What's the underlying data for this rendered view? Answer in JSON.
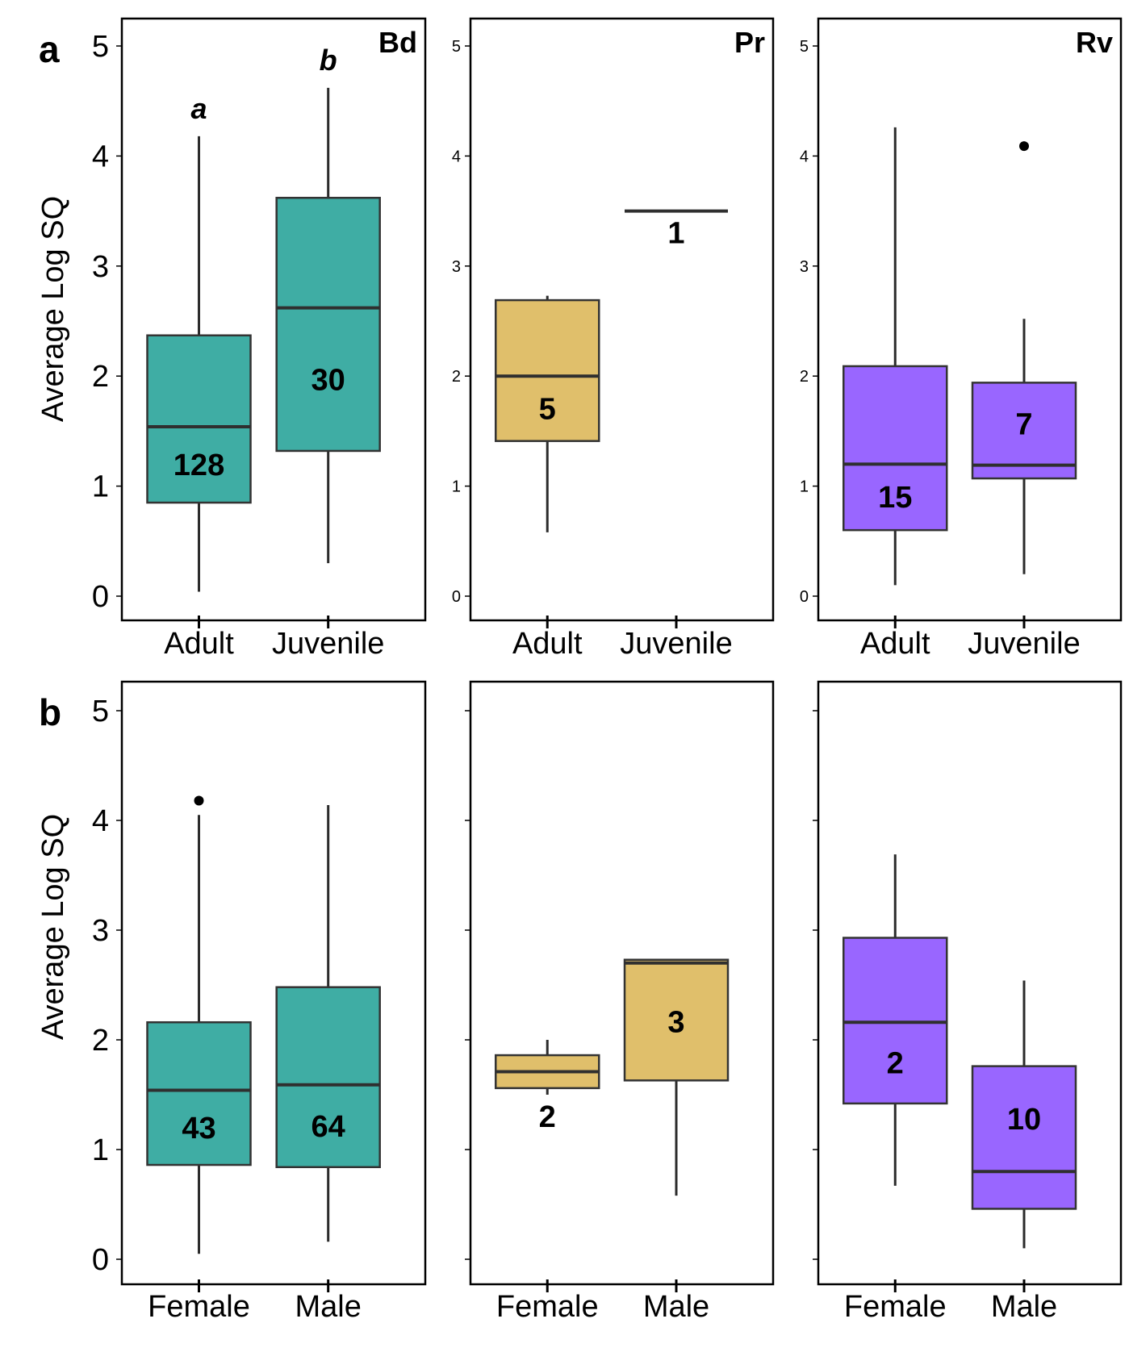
{
  "panel_letters": [
    "a",
    "b"
  ],
  "y_axis_title": "Average Log SQ",
  "colors": {
    "Bd": "#3fada4",
    "Pr": "#e0bf6b",
    "Rv": "#9966ff",
    "outline": "#333333"
  },
  "chart_data": [
    {
      "type": "box",
      "row": "a",
      "pathogen": "Bd",
      "ylim": [
        0,
        5
      ],
      "y_ticks": [
        0,
        1,
        2,
        3,
        4,
        5
      ],
      "show_y_labels": "large",
      "categories": [
        "Adult",
        "Juvenile"
      ],
      "boxes": [
        {
          "category": "Adult",
          "min": 0.04,
          "q1": 0.85,
          "median": 1.54,
          "q3": 2.37,
          "max": 4.18,
          "outliers": [],
          "n": "128",
          "sig_letter": "a"
        },
        {
          "category": "Juvenile",
          "min": 0.3,
          "q1": 1.32,
          "median": 2.62,
          "q3": 3.62,
          "max": 4.62,
          "outliers": [],
          "n": "30",
          "sig_letter": "b"
        }
      ]
    },
    {
      "type": "box",
      "row": "a",
      "pathogen": "Pr",
      "ylim": [
        0,
        5
      ],
      "y_ticks": [
        0,
        1,
        2,
        3,
        4,
        5
      ],
      "show_y_labels": "small",
      "categories": [
        "Adult",
        "Juvenile"
      ],
      "boxes": [
        {
          "category": "Adult",
          "min": 0.58,
          "q1": 1.41,
          "median": 2.0,
          "q3": 2.69,
          "max": 2.73,
          "outliers": [],
          "n": "5"
        },
        {
          "category": "Juvenile",
          "min": 3.5,
          "q1": 3.5,
          "median": 3.5,
          "q3": 3.5,
          "max": 3.5,
          "outliers": [],
          "n": "1"
        }
      ]
    },
    {
      "type": "box",
      "row": "a",
      "pathogen": "Rv",
      "ylim": [
        0,
        5
      ],
      "y_ticks": [
        0,
        1,
        2,
        3,
        4,
        5
      ],
      "show_y_labels": "small",
      "categories": [
        "Adult",
        "Juvenile"
      ],
      "boxes": [
        {
          "category": "Adult",
          "min": 0.1,
          "q1": 0.6,
          "median": 1.2,
          "q3": 2.09,
          "max": 4.26,
          "outliers": [],
          "n": "15"
        },
        {
          "category": "Juvenile",
          "min": 0.2,
          "q1": 1.07,
          "median": 1.19,
          "q3": 1.94,
          "max": 2.52,
          "outliers": [
            4.09
          ],
          "n": "7"
        }
      ]
    },
    {
      "type": "box",
      "row": "b",
      "pathogen": "Bd",
      "ylim": [
        0,
        5
      ],
      "y_ticks": [
        0,
        1,
        2,
        3,
        4,
        5
      ],
      "show_y_labels": "large",
      "categories": [
        "Female",
        "Male"
      ],
      "boxes": [
        {
          "category": "Female",
          "min": 0.05,
          "q1": 0.86,
          "median": 1.54,
          "q3": 2.16,
          "max": 4.05,
          "outliers": [
            4.18
          ],
          "n": "43"
        },
        {
          "category": "Male",
          "min": 0.16,
          "q1": 0.84,
          "median": 1.59,
          "q3": 2.48,
          "max": 4.14,
          "outliers": [],
          "n": "64"
        }
      ]
    },
    {
      "type": "box",
      "row": "b",
      "pathogen": "Pr",
      "ylim": [
        0,
        5
      ],
      "y_ticks": [
        0,
        1,
        2,
        3,
        4,
        5
      ],
      "show_y_labels": "none",
      "categories": [
        "Female",
        "Male"
      ],
      "boxes": [
        {
          "category": "Female",
          "min": 1.5,
          "q1": 1.56,
          "median": 1.71,
          "q3": 1.86,
          "max": 2.0,
          "outliers": [],
          "n": "2"
        },
        {
          "category": "Male",
          "min": 0.58,
          "q1": 1.63,
          "median": 2.7,
          "q3": 2.73,
          "max": 2.73,
          "outliers": [],
          "n": "3"
        }
      ]
    },
    {
      "type": "box",
      "row": "b",
      "pathogen": "Rv",
      "ylim": [
        0,
        5
      ],
      "y_ticks": [
        0,
        1,
        2,
        3,
        4,
        5
      ],
      "show_y_labels": "none",
      "categories": [
        "Female",
        "Male"
      ],
      "boxes": [
        {
          "category": "Female",
          "min": 0.67,
          "q1": 1.42,
          "median": 2.16,
          "q3": 2.93,
          "max": 3.69,
          "outliers": [],
          "n": "2"
        },
        {
          "category": "Male",
          "min": 0.1,
          "q1": 0.46,
          "median": 0.8,
          "q3": 1.76,
          "max": 2.54,
          "outliers": [],
          "n": "10"
        }
      ]
    }
  ]
}
